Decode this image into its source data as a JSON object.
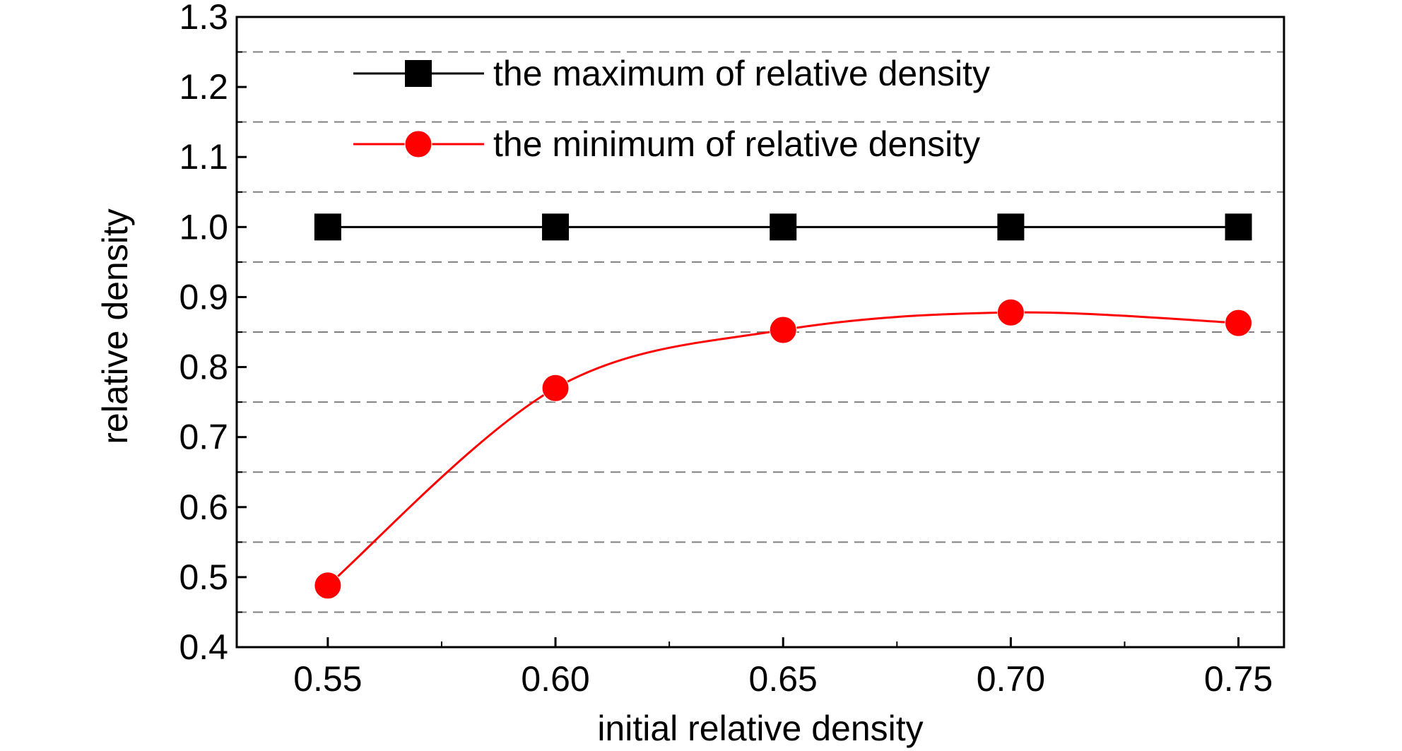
{
  "chart_data": {
    "type": "line",
    "xlabel": "initial relative density",
    "ylabel": "relative density",
    "xlim": [
      0.53,
      0.76
    ],
    "ylim": [
      0.4,
      1.3
    ],
    "x_ticks": [
      "0.55",
      "0.60",
      "0.65",
      "0.70",
      "0.75"
    ],
    "x_tick_values": [
      0.55,
      0.6,
      0.65,
      0.7,
      0.75
    ],
    "y_ticks": [
      "0.4",
      "0.5",
      "0.6",
      "0.7",
      "0.8",
      "0.9",
      "1.0",
      "1.1",
      "1.2",
      "1.3"
    ],
    "y_tick_values": [
      0.4,
      0.5,
      0.6,
      0.7,
      0.8,
      0.9,
      1.0,
      1.1,
      1.2,
      1.3
    ],
    "grid": "horizontal dashed lines at minor ticks",
    "legend_position": "top-left",
    "series": [
      {
        "name": "the maximum of relative density",
        "color": "#000000",
        "marker": "square",
        "x": [
          0.55,
          0.6,
          0.65,
          0.7,
          0.75
        ],
        "y": [
          1.0,
          1.0,
          1.0,
          1.0,
          1.0
        ]
      },
      {
        "name": "the minimum of relative density",
        "color": "#ff0000",
        "marker": "circle",
        "smooth": true,
        "x": [
          0.55,
          0.6,
          0.65,
          0.7,
          0.75
        ],
        "y": [
          0.488,
          0.77,
          0.853,
          0.878,
          0.863
        ]
      }
    ]
  }
}
